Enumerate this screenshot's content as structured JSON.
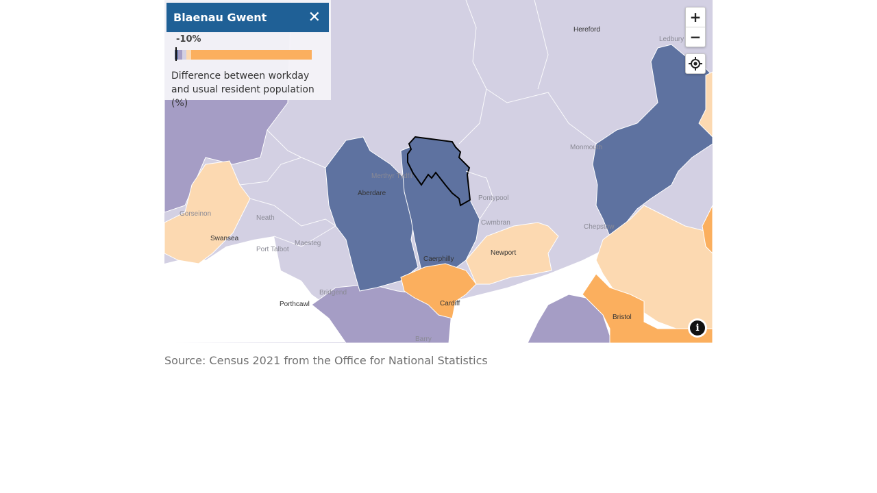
{
  "legend": {
    "area_name": "Blaenau Gwent",
    "close_glyph": "✕",
    "value_label": "-10%",
    "value": -10,
    "scale_colors": [
      "#5e72a0",
      "#a59dc5",
      "#d3d0e3",
      "#fcd9b1",
      "#fbaf5e"
    ],
    "description": "Difference between workday and usual resident population (%)"
  },
  "controls": {
    "zoom_in": "+",
    "zoom_out": "−",
    "locate_icon": "crosshair-icon",
    "info_icon": "info-icon",
    "info_glyph": "i"
  },
  "places": [
    {
      "name": "Hereford",
      "prominent": true
    },
    {
      "name": "Ledbury",
      "prominent": false
    },
    {
      "name": "Monmouth",
      "prominent": false
    },
    {
      "name": "Merthyr Tydfil",
      "prominent": false
    },
    {
      "name": "Aberdare",
      "prominent": true
    },
    {
      "name": "Pontypool",
      "prominent": false
    },
    {
      "name": "Cwmbran",
      "prominent": false
    },
    {
      "name": "Newport",
      "prominent": true
    },
    {
      "name": "Caerphilly",
      "prominent": true
    },
    {
      "name": "Cardiff",
      "prominent": true
    },
    {
      "name": "Chepstow",
      "prominent": false
    },
    {
      "name": "Bristol",
      "prominent": true
    },
    {
      "name": "Neath",
      "prominent": false
    },
    {
      "name": "Port Talbot",
      "prominent": false
    },
    {
      "name": "Maesteg",
      "prominent": false
    },
    {
      "name": "Bridgend",
      "prominent": false
    },
    {
      "name": "Porthcawl",
      "prominent": true
    },
    {
      "name": "Barry",
      "prominent": false
    },
    {
      "name": "Swansea",
      "prominent": true
    },
    {
      "name": "Gorseinon",
      "prominent": false
    }
  ],
  "source": "Source: Census 2021 from the Office for National Statistics"
}
